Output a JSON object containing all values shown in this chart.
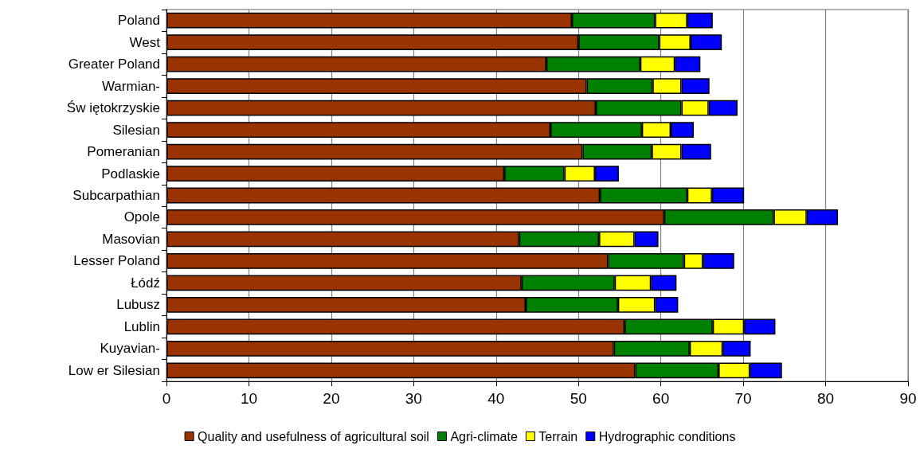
{
  "chart_data": {
    "type": "bar",
    "orientation": "horizontal",
    "stacked": true,
    "categories": [
      "Poland",
      "West",
      "Greater Poland",
      "Warmian-",
      "Św iętokrzyskie",
      "Silesian",
      "Pomeranian",
      "Podlaskie",
      "Subcarpathian",
      "Opole",
      "Masovian",
      "Lesser Poland",
      "Łódź",
      "Lubusz",
      "Lublin",
      "Kuyavian-",
      "Low er Silesian"
    ],
    "series": [
      {
        "name": "Quality and usefulness of agricultural soil",
        "color": "#993300",
        "values": [
          49.2,
          50.0,
          46.1,
          51.0,
          52.1,
          46.6,
          50.5,
          41.0,
          52.6,
          60.4,
          42.8,
          53.6,
          43.1,
          43.6,
          55.6,
          54.3,
          56.9
        ]
      },
      {
        "name": "Agri-climate",
        "color": "#008000",
        "values": [
          10.1,
          9.8,
          11.4,
          8.0,
          10.4,
          11.1,
          8.4,
          7.3,
          10.6,
          13.3,
          9.7,
          9.2,
          11.3,
          11.2,
          10.7,
          9.2,
          10.1
        ]
      },
      {
        "name": "Terrain",
        "color": "#ffff00",
        "values": [
          3.9,
          3.8,
          4.2,
          3.5,
          3.3,
          3.5,
          3.6,
          3.7,
          3.0,
          4.0,
          4.3,
          2.3,
          4.4,
          4.5,
          3.8,
          4.0,
          3.8
        ]
      },
      {
        "name": "Hydrographic conditions",
        "color": "#0000ff",
        "values": [
          3.1,
          3.8,
          3.1,
          3.4,
          3.5,
          2.8,
          3.6,
          2.9,
          3.9,
          3.8,
          2.9,
          3.8,
          3.1,
          2.8,
          3.8,
          3.4,
          3.9
        ]
      }
    ],
    "xlim": [
      0,
      90
    ],
    "xticks": [
      0,
      10,
      20,
      30,
      40,
      50,
      60,
      70,
      80,
      90
    ],
    "grid": "x",
    "legend": "bottom"
  }
}
